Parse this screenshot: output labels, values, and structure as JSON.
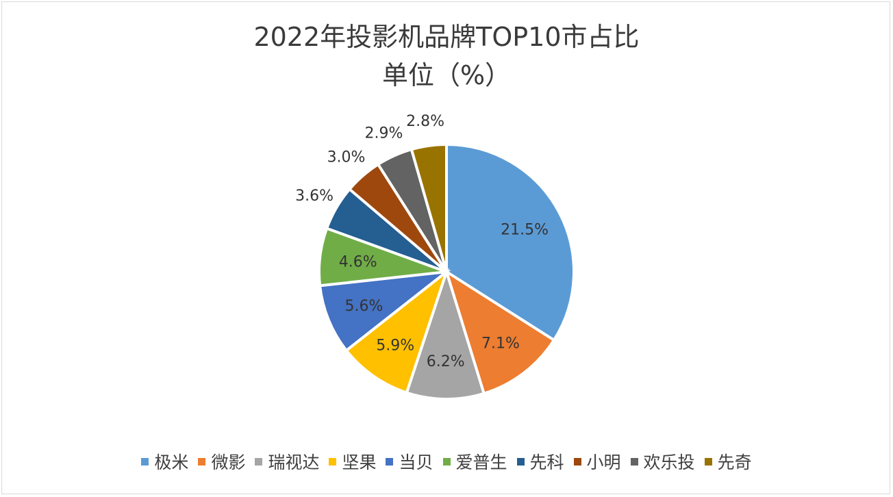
{
  "chart_data": {
    "type": "pie",
    "title": "2022年投影机品牌TOP10市占比",
    "subtitle": "单位（%）",
    "categories": [
      "极米",
      "微影",
      "瑞视达",
      "坚果",
      "当贝",
      "爱普生",
      "先科",
      "小明",
      "欢乐投",
      "先奇"
    ],
    "values": [
      21.5,
      7.1,
      6.2,
      5.9,
      5.6,
      4.6,
      3.6,
      3.0,
      2.9,
      2.8
    ],
    "data_labels": [
      "21.5%",
      "7.1%",
      "6.2%",
      "5.9%",
      "5.6%",
      "4.6%",
      "3.6%",
      "3.0%",
      "2.9%",
      "2.8%"
    ],
    "colors": [
      "#5b9bd5",
      "#ed7d31",
      "#a5a5a5",
      "#ffc000",
      "#4472c4",
      "#70ad47",
      "#255e91",
      "#9e480e",
      "#636363",
      "#997300"
    ],
    "legend": "bottom"
  }
}
